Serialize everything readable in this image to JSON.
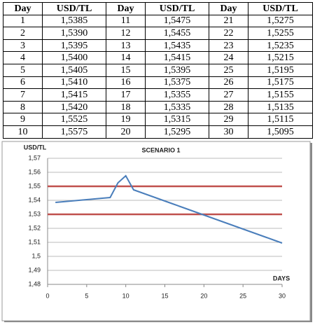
{
  "table": {
    "header": [
      "Day",
      "USD/TL",
      "Day",
      "USD/TL",
      "Day",
      "USD/TL"
    ],
    "rows": [
      [
        "1",
        "1,5385",
        "11",
        "1,5475",
        "21",
        "1,5275"
      ],
      [
        "2",
        "1,5390",
        "12",
        "1,5455",
        "22",
        "1,5255"
      ],
      [
        "3",
        "1,5395",
        "13",
        "1,5435",
        "23",
        "1,5235"
      ],
      [
        "4",
        "1,5400",
        "14",
        "1,5415",
        "24",
        "1,5215"
      ],
      [
        "5",
        "1,5405",
        "15",
        "1,5395",
        "25",
        "1,5195"
      ],
      [
        "6",
        "1,5410",
        "16",
        "1,5375",
        "26",
        "1,5175"
      ],
      [
        "7",
        "1,5415",
        "17",
        "1,5355",
        "27",
        "1,5155"
      ],
      [
        "8",
        "1,5420",
        "18",
        "1,5335",
        "28",
        "1,5135"
      ],
      [
        "9",
        "1,5525",
        "19",
        "1,5315",
        "29",
        "1,5115"
      ],
      [
        "10",
        "1,5575",
        "20",
        "1,5295",
        "30",
        "1,5095"
      ]
    ]
  },
  "chart_data": {
    "type": "line",
    "title": "SCENARIO 1",
    "y_label": "USD/TL",
    "x_label": "DAYS",
    "x": [
      1,
      2,
      3,
      4,
      5,
      6,
      7,
      8,
      9,
      10,
      11,
      12,
      13,
      14,
      15,
      16,
      17,
      18,
      19,
      20,
      21,
      22,
      23,
      24,
      25,
      26,
      27,
      28,
      29,
      30
    ],
    "series": [
      {
        "color": "#4a7ebb",
        "values": [
          1.5385,
          1.539,
          1.5395,
          1.54,
          1.5405,
          1.541,
          1.5415,
          1.542,
          1.5525,
          1.5575,
          1.5475,
          1.5455,
          1.5435,
          1.5415,
          1.5395,
          1.5375,
          1.5355,
          1.5335,
          1.5315,
          1.5295,
          1.5275,
          1.5255,
          1.5235,
          1.5215,
          1.5195,
          1.5175,
          1.5155,
          1.5135,
          1.5115,
          1.5095
        ]
      }
    ],
    "reference_lines": [
      {
        "value": 1.55,
        "color": "#c0504d"
      },
      {
        "value": 1.53,
        "color": "#c0504d"
      }
    ],
    "xlim": [
      0,
      30
    ],
    "xticks": [
      0,
      5,
      10,
      15,
      20,
      25,
      30
    ],
    "ylim": [
      1.48,
      1.57
    ],
    "yticks": [
      {
        "value": 1.48,
        "label": "1,48"
      },
      {
        "value": 1.49,
        "label": "1,49"
      },
      {
        "value": 1.5,
        "label": "1,5"
      },
      {
        "value": 1.51,
        "label": "1,51"
      },
      {
        "value": 1.52,
        "label": "1,52"
      },
      {
        "value": 1.53,
        "label": "1,53"
      },
      {
        "value": 1.54,
        "label": "1,54"
      },
      {
        "value": 1.55,
        "label": "1,55"
      },
      {
        "value": 1.56,
        "label": "1,56"
      },
      {
        "value": 1.57,
        "label": "1,57"
      }
    ],
    "grid": true
  }
}
